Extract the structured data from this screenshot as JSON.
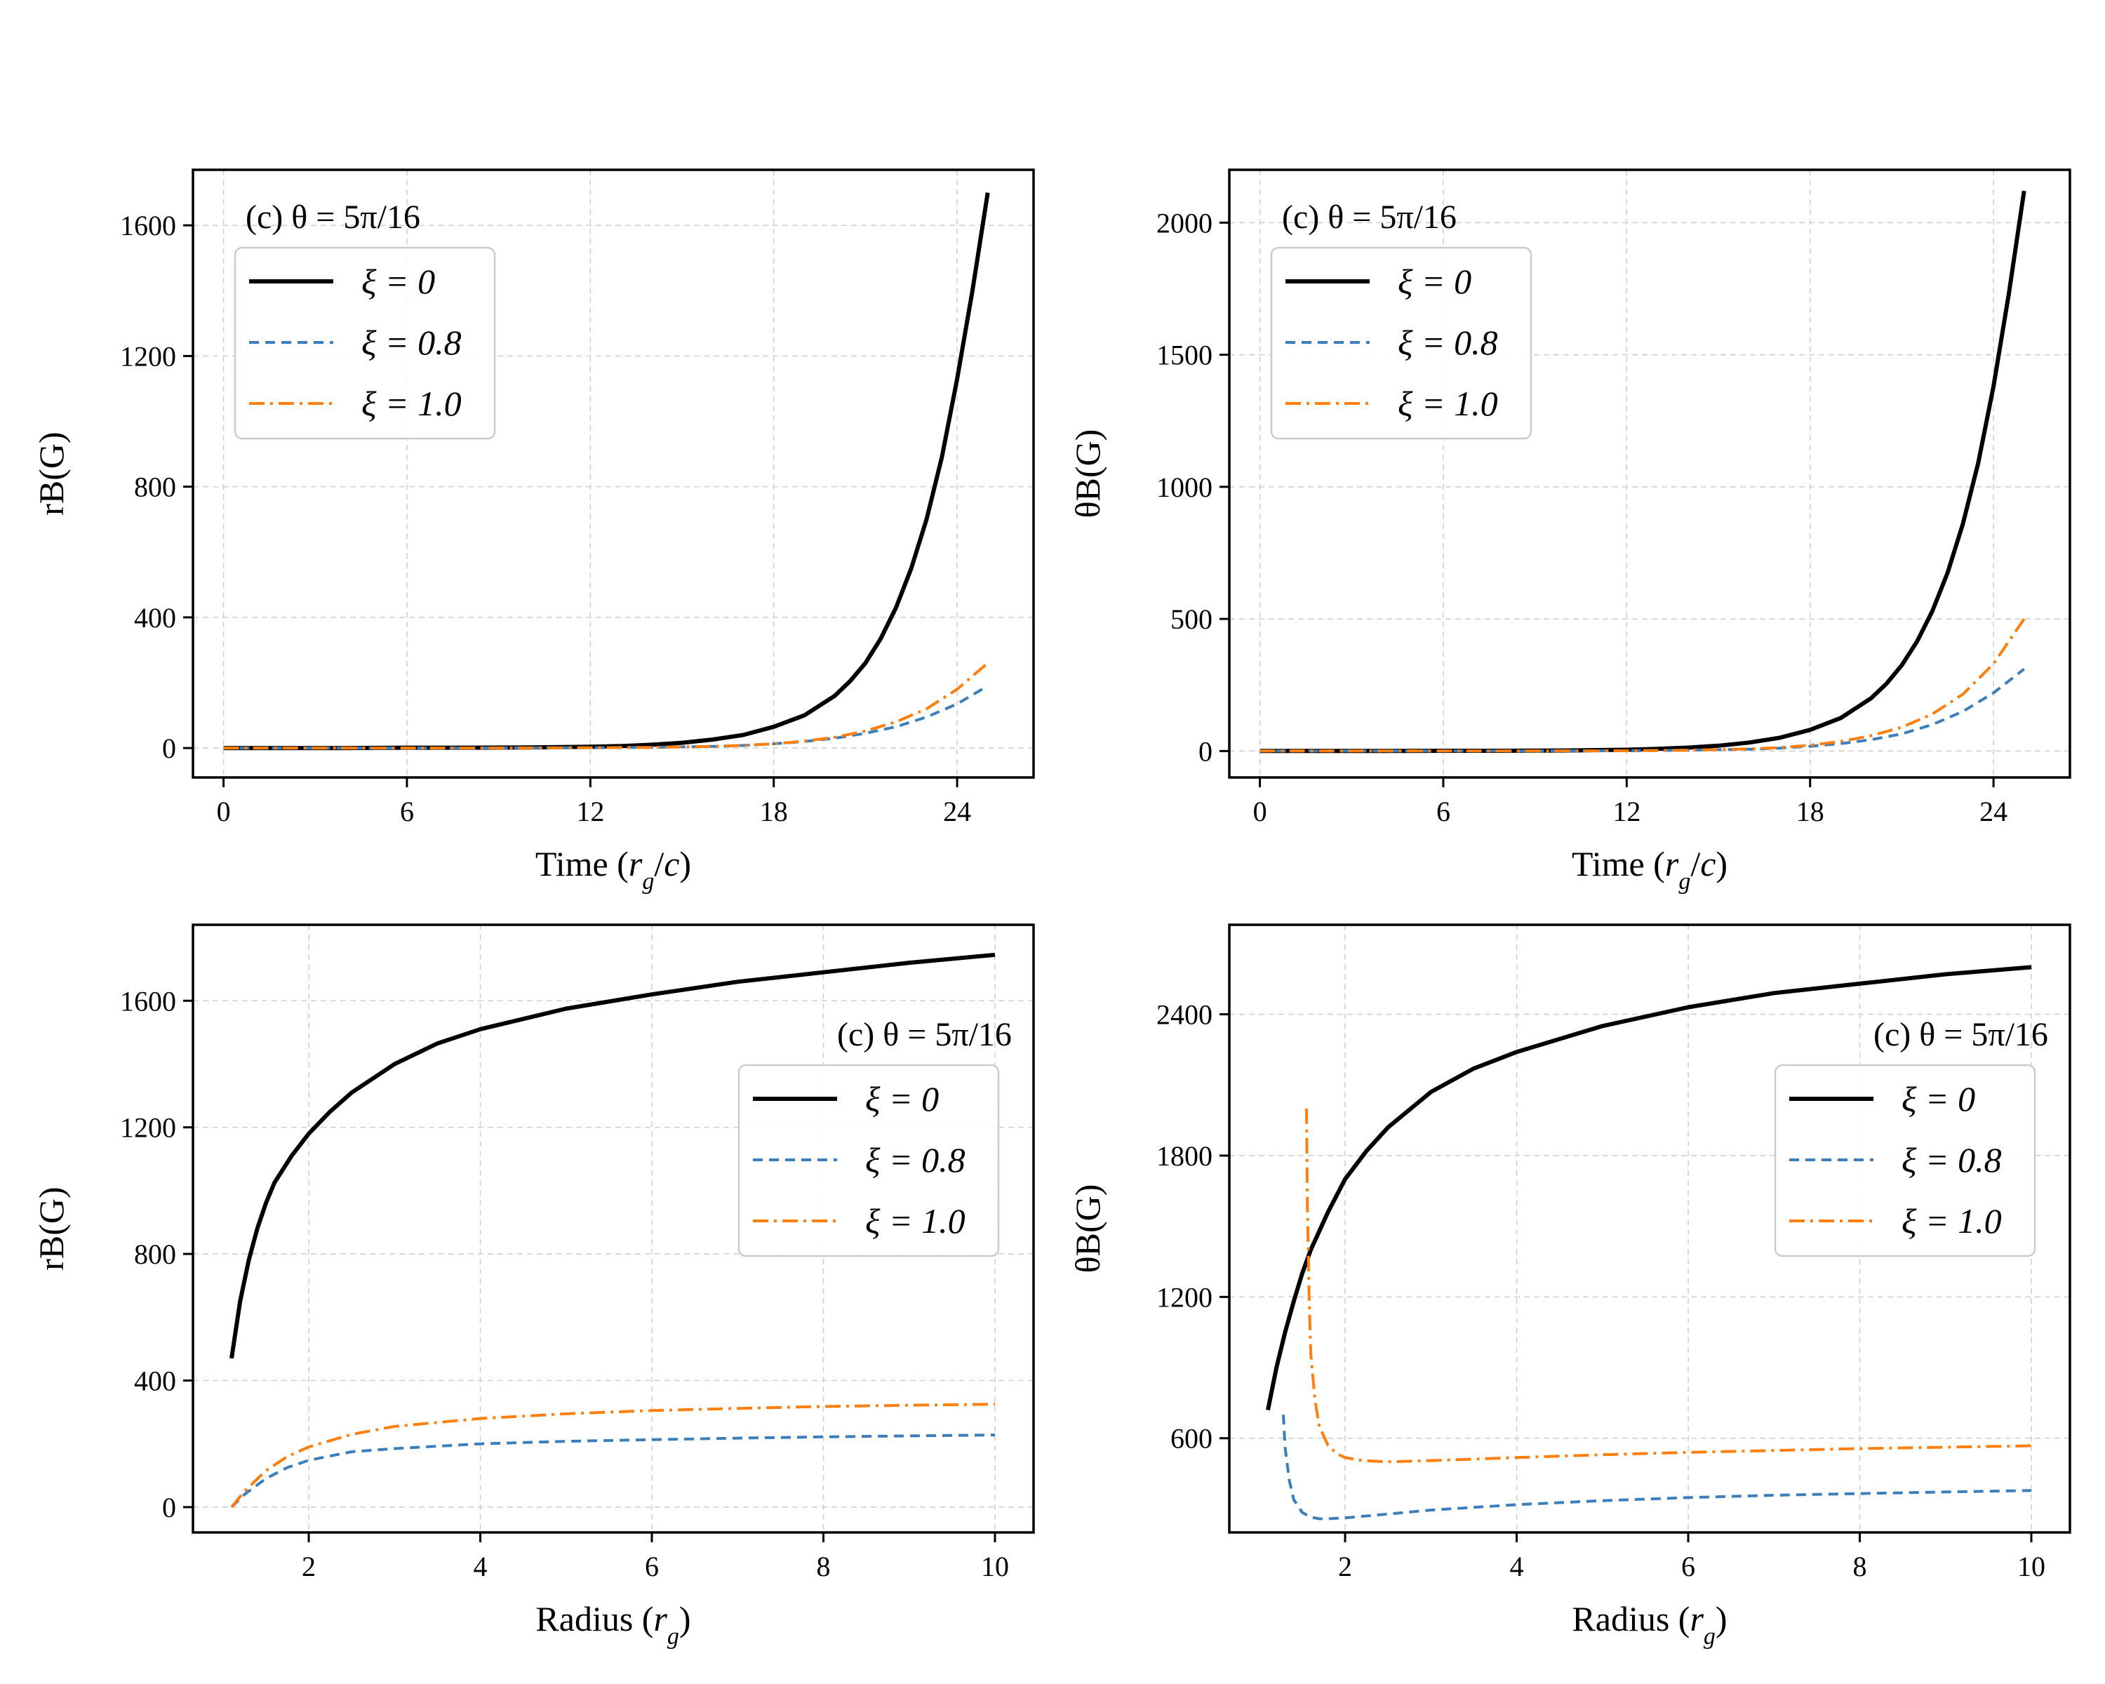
{
  "figure": {
    "background": "#ffffff"
  },
  "series_style": [
    {
      "key": "xi0",
      "color": "#000000",
      "dash": "",
      "width": 6
    },
    {
      "key": "xi08",
      "color": "#3a7fbd",
      "dash": "14 9",
      "width": 4
    },
    {
      "key": "xi10",
      "color": "#ff7f0e",
      "dash": "22 8 4 8",
      "width": 4
    }
  ],
  "chart_data": [
    {
      "id": "a",
      "type": "line",
      "annotation": "(c)   θ = 5π/16",
      "xlabel": "Time (r_g/c)",
      "ylabel": "rB(G)",
      "xlim": [
        -1,
        26.5
      ],
      "ylim": [
        -90,
        1770
      ],
      "xticks": [
        0,
        6,
        12,
        18,
        24
      ],
      "xtick_labels": [
        "0",
        "6",
        "12",
        "18",
        "24"
      ],
      "yticks": [
        0,
        400,
        800,
        1200,
        1600
      ],
      "ytick_labels": [
        "0",
        "400",
        "800",
        "1200",
        "1600"
      ],
      "legend_position": "upper-left",
      "series": [
        {
          "name": "ξ = 0",
          "x": [
            0,
            2,
            4,
            6,
            8,
            10,
            12,
            13,
            14,
            15,
            16,
            17,
            18,
            19,
            20,
            20.5,
            21,
            21.5,
            22,
            22.5,
            23,
            23.5,
            24,
            24.5,
            25
          ],
          "y": [
            0,
            0,
            0,
            1,
            1,
            2,
            4,
            6,
            10,
            16,
            26,
            40,
            65,
            100,
            160,
            205,
            260,
            335,
            430,
            550,
            700,
            890,
            1130,
            1400,
            1700
          ]
        },
        {
          "name": "ξ = 0.8",
          "x": [
            0,
            4,
            8,
            12,
            14,
            16,
            17,
            18,
            19,
            20,
            21,
            22,
            23,
            24,
            25
          ],
          "y": [
            0,
            0,
            0,
            1,
            2,
            5,
            8,
            13,
            20,
            30,
            45,
            65,
            95,
            135,
            190
          ]
        },
        {
          "name": "ξ = 1.0",
          "x": [
            0,
            4,
            8,
            12,
            14,
            16,
            17,
            18,
            19,
            20,
            21,
            22,
            23,
            24,
            25
          ],
          "y": [
            0,
            0,
            0,
            1,
            2,
            5,
            8,
            13,
            21,
            33,
            52,
            80,
            120,
            180,
            260
          ]
        }
      ]
    },
    {
      "id": "b",
      "type": "line",
      "annotation": "(c)   θ = 5π/16",
      "xlabel": "Time (r_g/c)",
      "ylabel": "θB(G)",
      "xlim": [
        -1,
        26.5
      ],
      "ylim": [
        -100,
        2200
      ],
      "xticks": [
        0,
        6,
        12,
        18,
        24
      ],
      "xtick_labels": [
        "0",
        "6",
        "12",
        "18",
        "24"
      ],
      "yticks": [
        0,
        500,
        1000,
        1500,
        2000
      ],
      "ytick_labels": [
        "0",
        "500",
        "1000",
        "1500",
        "2000"
      ],
      "legend_position": "upper-left",
      "series": [
        {
          "name": "ξ = 0",
          "x": [
            0,
            2,
            4,
            6,
            8,
            10,
            12,
            13,
            14,
            15,
            16,
            17,
            18,
            19,
            20,
            20.5,
            21,
            21.5,
            22,
            22.5,
            23,
            23.5,
            24,
            24.5,
            25
          ],
          "y": [
            0,
            0,
            0,
            1,
            1,
            2,
            5,
            8,
            13,
            20,
            32,
            50,
            80,
            125,
            200,
            255,
            325,
            415,
            530,
            675,
            860,
            1090,
            1380,
            1730,
            2120
          ]
        },
        {
          "name": "ξ = 0.8",
          "x": [
            0,
            4,
            8,
            12,
            14,
            16,
            17,
            18,
            19,
            20,
            21,
            22,
            23,
            24,
            25
          ],
          "y": [
            0,
            0,
            0,
            1,
            3,
            7,
            11,
            18,
            28,
            43,
            65,
            100,
            150,
            220,
            310
          ]
        },
        {
          "name": "ξ = 1.0",
          "x": [
            0,
            4,
            8,
            12,
            14,
            16,
            17,
            18,
            19,
            20,
            21,
            22,
            23,
            24,
            25
          ],
          "y": [
            0,
            0,
            0,
            1,
            3,
            8,
            13,
            22,
            36,
            58,
            90,
            140,
            215,
            330,
            500
          ]
        }
      ]
    },
    {
      "id": "c",
      "type": "line",
      "annotation": "(c)   θ = 5π/16",
      "xlabel": "Radius (r_g)",
      "ylabel": "rB(G)",
      "xlim": [
        0.65,
        10.45
      ],
      "ylim": [
        -80,
        1840
      ],
      "xticks": [
        2,
        4,
        6,
        8,
        10
      ],
      "xtick_labels": [
        "2",
        "4",
        "6",
        "8",
        "10"
      ],
      "yticks": [
        0,
        400,
        800,
        1200,
        1600
      ],
      "ytick_labels": [
        "0",
        "400",
        "800",
        "1200",
        "1600"
      ],
      "legend_position": "center-right",
      "series": [
        {
          "name": "ξ = 0",
          "x": [
            1.1,
            1.2,
            1.3,
            1.4,
            1.5,
            1.6,
            1.8,
            2.0,
            2.25,
            2.5,
            3,
            3.5,
            4,
            5,
            6,
            7,
            8,
            9,
            10
          ],
          "y": [
            470,
            650,
            780,
            880,
            960,
            1025,
            1110,
            1180,
            1250,
            1310,
            1400,
            1465,
            1510,
            1575,
            1620,
            1660,
            1690,
            1720,
            1745
          ]
        },
        {
          "name": "ξ = 0.8",
          "x": [
            1.1,
            1.25,
            1.5,
            1.75,
            2.0,
            2.5,
            3,
            4,
            5,
            6,
            7,
            8,
            9,
            10
          ],
          "y": [
            0,
            40,
            90,
            125,
            148,
            175,
            185,
            200,
            208,
            213,
            218,
            222,
            225,
            228
          ]
        },
        {
          "name": "ξ = 1.0",
          "x": [
            1.1,
            1.25,
            1.5,
            1.75,
            2.0,
            2.5,
            3,
            4,
            5,
            6,
            7,
            8,
            9,
            10
          ],
          "y": [
            0,
            50,
            115,
            160,
            190,
            230,
            255,
            280,
            295,
            305,
            312,
            318,
            322,
            325
          ]
        }
      ]
    },
    {
      "id": "d",
      "type": "line",
      "annotation": "(c)   θ = 5π/16",
      "xlabel": "Radius (r_g)",
      "ylabel": "θB(G)",
      "xlim": [
        0.65,
        10.45
      ],
      "ylim": [
        200,
        2780
      ],
      "xticks": [
        2,
        4,
        6,
        8,
        10
      ],
      "xtick_labels": [
        "2",
        "4",
        "6",
        "8",
        "10"
      ],
      "yticks": [
        600,
        1200,
        1800,
        2400
      ],
      "ytick_labels": [
        "600",
        "1200",
        "1800",
        "2400"
      ],
      "legend_position": "center-right",
      "series": [
        {
          "name": "ξ = 0",
          "x": [
            1.1,
            1.2,
            1.3,
            1.4,
            1.5,
            1.6,
            1.8,
            2.0,
            2.25,
            2.5,
            3,
            3.5,
            4,
            5,
            6,
            7,
            8,
            9,
            10
          ],
          "y": [
            720,
            900,
            1050,
            1180,
            1300,
            1400,
            1560,
            1700,
            1820,
            1920,
            2070,
            2170,
            2240,
            2350,
            2430,
            2490,
            2530,
            2570,
            2600
          ]
        },
        {
          "name": "ξ = 0.8",
          "x": [
            1.28,
            1.3,
            1.35,
            1.4,
            1.5,
            1.6,
            1.7,
            1.8,
            2.0,
            2.5,
            3,
            4,
            5,
            6,
            7,
            8,
            9,
            10
          ],
          "y": [
            700,
            560,
            420,
            340,
            285,
            265,
            258,
            258,
            262,
            278,
            295,
            318,
            335,
            348,
            358,
            365,
            372,
            378
          ]
        },
        {
          "name": "ξ = 1.0",
          "x": [
            1.55,
            1.56,
            1.58,
            1.6,
            1.65,
            1.7,
            1.8,
            1.9,
            2.0,
            2.2,
            2.5,
            3,
            4,
            5,
            6,
            7,
            8,
            9,
            10
          ],
          "y": [
            2000,
            1600,
            1200,
            960,
            760,
            650,
            570,
            535,
            518,
            505,
            500,
            505,
            518,
            530,
            540,
            548,
            556,
            562,
            568
          ]
        }
      ]
    }
  ]
}
